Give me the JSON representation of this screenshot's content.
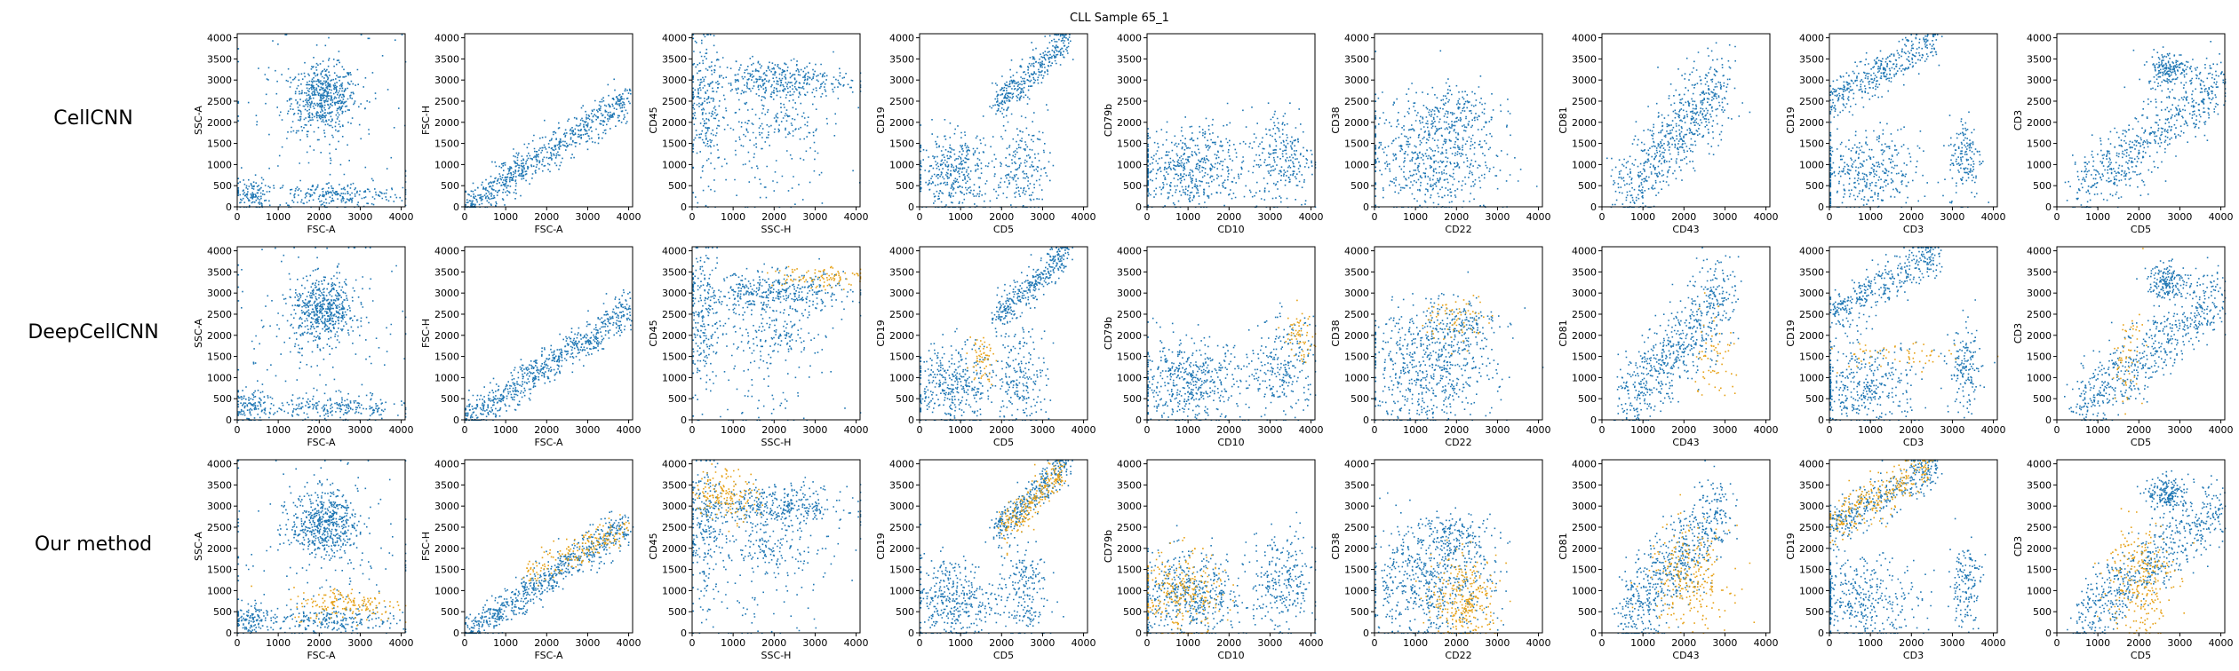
{
  "title": "CLL Sample 65_1",
  "colors": {
    "background": "#1f77b4",
    "highlight": "#e6a117"
  },
  "axis": {
    "xlim": [
      0,
      4096
    ],
    "ylim": [
      0,
      4096
    ],
    "ticks": [
      0,
      500,
      1000,
      1500,
      2000,
      2500,
      3000,
      3500,
      4000
    ]
  },
  "x_ticks_text": [
    "0",
    "1000",
    "2000",
    "3000",
    "4000"
  ],
  "y_ticks_text": [
    "0",
    "500",
    "1000",
    "1500",
    "2000",
    "2500",
    "3000",
    "3500",
    "4000"
  ],
  "rows": [
    {
      "label": "CellCNN"
    },
    {
      "label": "DeepCellCNN"
    },
    {
      "label": "Our method"
    }
  ],
  "chart_data": {
    "type": "scatter",
    "xlim": [
      0,
      4096
    ],
    "ylim": [
      0,
      4096
    ],
    "panels": [
      {
        "xlabel": "FSC-A",
        "ylabel": "SSC-A",
        "blue": [
          {
            "c": [
              2100,
              2600
            ],
            "s": [
              400,
              380
            ],
            "n": 520
          },
          {
            "c": [
              2300,
              300
            ],
            "s": [
              900,
              150
            ],
            "n": 220
          },
          {
            "c": [
              300,
              300
            ],
            "s": [
              200,
              200
            ],
            "n": 110
          },
          {
            "c": [
              2000,
              2000
            ],
            "s": [
              1200,
              1200
            ],
            "n": 150
          }
        ],
        "highlight": [
          [],
          [],
          [
            {
              "c": [
                2700,
                700
              ],
              "s": [
                700,
                200
              ],
              "n": 160
            }
          ]
        ]
      },
      {
        "xlabel": "FSC-A",
        "ylabel": "FSC-H",
        "blue": [
          {
            "line": [
              [
                0,
                0
              ],
              [
                4000,
                2600
              ]
            ],
            "w": 220,
            "n": 700
          }
        ],
        "highlight": [
          [],
          [],
          [
            {
              "line": [
                [
                  1500,
                  1400
                ],
                [
                  4000,
                  2500
                ]
              ],
              "w": 180,
              "n": 180
            }
          ]
        ]
      },
      {
        "xlabel": "SSC-H",
        "ylabel": "CD45",
        "blue": [
          {
            "c": [
              2000,
              3000
            ],
            "s": [
              900,
              250
            ],
            "n": 400
          },
          {
            "c": [
              300,
              2500
            ],
            "s": [
              200,
              800
            ],
            "n": 200
          },
          {
            "c": [
              2000,
              2000
            ],
            "s": [
              600,
              250
            ],
            "n": 120
          },
          {
            "c": [
              1500,
              1000
            ],
            "s": [
              1000,
              700
            ],
            "n": 100
          }
        ],
        "highlight": [
          [],
          [
            {
              "c": [
                3000,
                3400
              ],
              "s": [
                600,
                150
              ],
              "n": 100
            }
          ],
          [
            {
              "c": [
                800,
                3300
              ],
              "s": [
                400,
                300
              ],
              "n": 160
            }
          ]
        ]
      },
      {
        "xlabel": "CD5",
        "ylabel": "CD19",
        "blue": [
          {
            "line": [
              [
                1800,
                2400
              ],
              [
                3600,
                4000
              ]
            ],
            "w": 200,
            "n": 350
          },
          {
            "c": [
              800,
              800
            ],
            "s": [
              500,
              500
            ],
            "n": 380
          },
          {
            "c": [
              2500,
              1000
            ],
            "s": [
              300,
              600
            ],
            "n": 200
          }
        ],
        "highlight": [
          [],
          [
            {
              "c": [
                1500,
                1500
              ],
              "s": [
                150,
                300
              ],
              "n": 60
            }
          ],
          [
            {
              "line": [
                [
                  2000,
                  2400
                ],
                [
                  3500,
                  3900
                ]
              ],
              "w": 200,
              "n": 220
            }
          ]
        ]
      },
      {
        "xlabel": "CD10",
        "ylabel": "CD79b",
        "blue": [
          {
            "c": [
              1000,
              900
            ],
            "s": [
              700,
              500
            ],
            "n": 500
          },
          {
            "c": [
              3300,
              1200
            ],
            "s": [
              400,
              600
            ],
            "n": 250
          }
        ],
        "highlight": [
          [],
          [
            {
              "c": [
                3700,
                2000
              ],
              "s": [
                200,
                300
              ],
              "n": 60
            }
          ],
          [
            {
              "c": [
                800,
                900
              ],
              "s": [
                500,
                500
              ],
              "n": 260
            }
          ]
        ]
      },
      {
        "xlabel": "CD22",
        "ylabel": "CD38",
        "blue": [
          {
            "c": [
              1300,
              1200
            ],
            "s": [
              800,
              700
            ],
            "n": 600
          },
          {
            "c": [
              2000,
              2300
            ],
            "s": [
              500,
              300
            ],
            "n": 150
          }
        ],
        "highlight": [
          [],
          [
            {
              "c": [
                2000,
                2400
              ],
              "s": [
                400,
                300
              ],
              "n": 70
            }
          ],
          [
            {
              "c": [
                2200,
                800
              ],
              "s": [
                400,
                500
              ],
              "n": 280
            }
          ]
        ]
      },
      {
        "xlabel": "CD43",
        "ylabel": "CD81",
        "blue": [
          {
            "line": [
              [
                500,
                300
              ],
              [
                3000,
                3000
              ]
            ],
            "w": 500,
            "n": 650
          }
        ],
        "highlight": [
          [],
          [
            {
              "c": [
                2700,
                1600
              ],
              "s": [
                250,
                600
              ],
              "n": 60
            }
          ],
          [
            {
              "c": [
                2100,
                1300
              ],
              "s": [
                500,
                600
              ],
              "n": 250
            }
          ]
        ]
      },
      {
        "xlabel": "CD3",
        "ylabel": "CD19",
        "blue": [
          {
            "line": [
              [
                0,
                2500
              ],
              [
                2600,
                4000
              ]
            ],
            "w": 250,
            "n": 380
          },
          {
            "c": [
              800,
              800
            ],
            "s": [
              700,
              500
            ],
            "n": 380
          },
          {
            "c": [
              3300,
              1200
            ],
            "s": [
              200,
              500
            ],
            "n": 150
          }
        ],
        "highlight": [
          [],
          [
            {
              "c": [
                1500,
                1500
              ],
              "s": [
                800,
                200
              ],
              "n": 60
            }
          ],
          [
            {
              "line": [
                [
                  0,
                  2600
                ],
                [
                  2400,
                  3900
                ]
              ],
              "w": 250,
              "n": 260
            }
          ]
        ]
      },
      {
        "xlabel": "CD5",
        "ylabel": "CD3",
        "blue": [
          {
            "c": [
              2700,
              3300
            ],
            "s": [
              250,
              200
            ],
            "n": 180
          },
          {
            "line": [
              [
                500,
                300
              ],
              [
                4000,
                3000
              ]
            ],
            "w": 400,
            "n": 600
          }
        ],
        "highlight": [
          [],
          [
            {
              "c": [
                1700,
                1500
              ],
              "s": [
                200,
                600
              ],
              "n": 60
            }
          ],
          [
            {
              "c": [
                2000,
                1300
              ],
              "s": [
                400,
                700
              ],
              "n": 260
            }
          ]
        ]
      }
    ]
  }
}
